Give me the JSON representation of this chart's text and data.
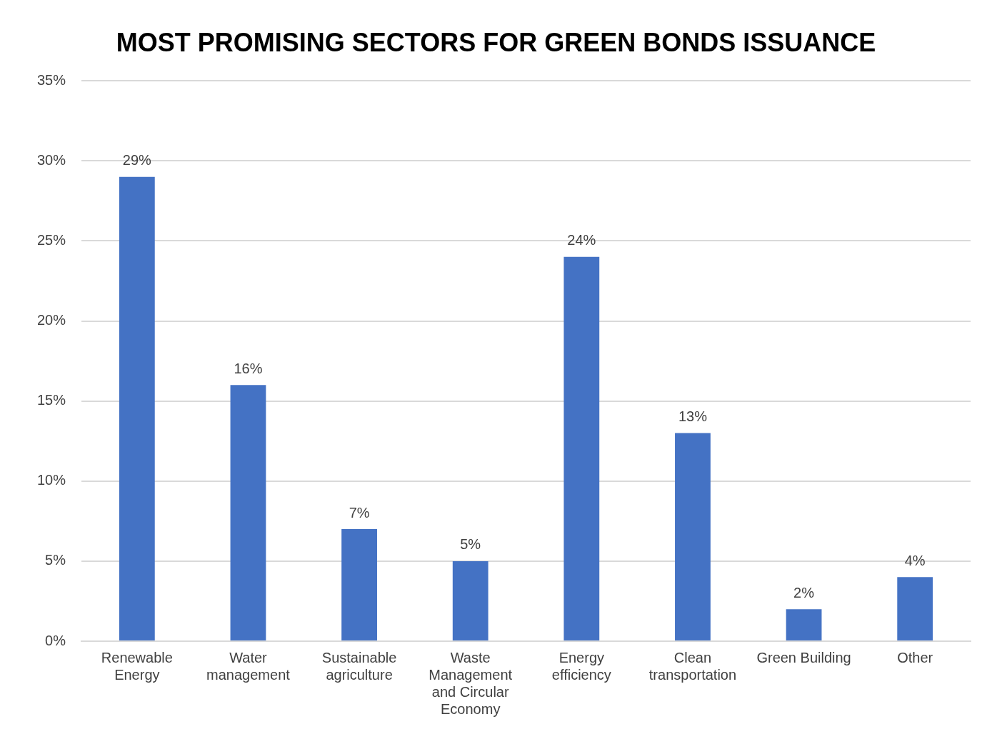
{
  "chart_data": {
    "type": "bar",
    "title": "MOST PROMISING SECTORS FOR GREEN BONDS ISSUANCE",
    "categories": [
      "Renewable Energy",
      "Water management",
      "Sustainable agriculture",
      "Waste Management and Circular Economy",
      "Energy efficiency",
      "Clean transportation",
      "Green Building",
      "Other"
    ],
    "values": [
      29,
      16,
      7,
      5,
      24,
      13,
      2,
      4
    ],
    "value_labels": [
      "29%",
      "16%",
      "7%",
      "5%",
      "24%",
      "13%",
      "2%",
      "4%"
    ],
    "color": "#4472c4",
    "ylim": [
      0,
      35
    ],
    "yticks": [
      {
        "value": 0,
        "label": "0%"
      },
      {
        "value": 5,
        "label": "5%"
      },
      {
        "value": 10,
        "label": "10%"
      },
      {
        "value": 15,
        "label": "15%"
      },
      {
        "value": 20,
        "label": "20%"
      },
      {
        "value": 25,
        "label": "25%"
      },
      {
        "value": 30,
        "label": "30%"
      },
      {
        "value": 35,
        "label": "35%"
      }
    ],
    "grid": "y",
    "legend": false
  }
}
